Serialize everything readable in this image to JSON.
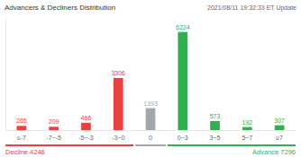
{
  "chart_data": {
    "type": "bar",
    "title": "Advancers & Decliners Distribution",
    "subtitle": "2021/08/11 19:32:33 ET Update",
    "categories": [
      "≤-7",
      "-7~-5",
      "-5~-3",
      "-3~0",
      "0",
      "0~3",
      "3~5",
      "5~7",
      "≥7"
    ],
    "values": [
      265,
      209,
      466,
      3306,
      1393,
      6224,
      573,
      192,
      307
    ],
    "colors": [
      "#e8413f",
      "#e8413f",
      "#e8413f",
      "#e8413f",
      "#a3a6ad",
      "#2fb14d",
      "#2fb14d",
      "#2fb14d",
      "#2fb14d"
    ],
    "ylim": [
      0,
      7000
    ],
    "data_labels": true,
    "tick_labels": "x",
    "annotations": [
      "Decline 4246",
      "Advance 7296"
    ]
  }
}
